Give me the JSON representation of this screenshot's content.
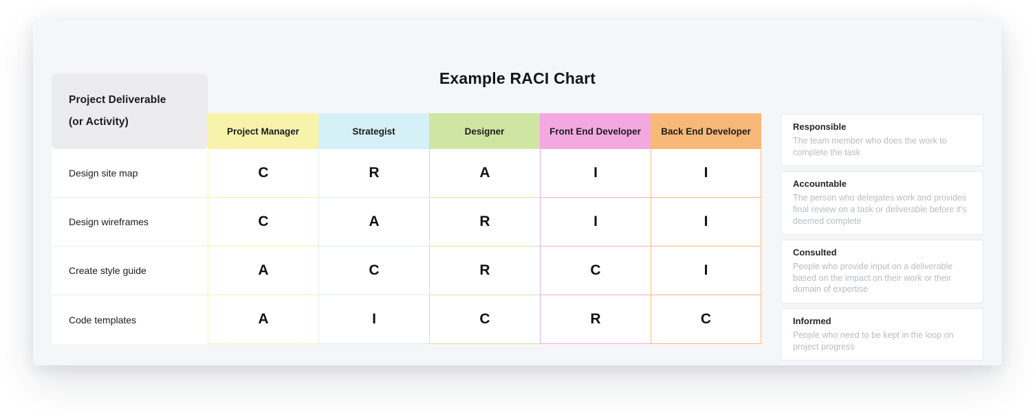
{
  "title": "Example RACI Chart",
  "table": {
    "corner_header": {
      "line1": "Project Deliverable",
      "line2": "(or Activity)"
    },
    "columns": [
      {
        "label": "Project Manager",
        "color": "#f8f3aa"
      },
      {
        "label": "Strategist",
        "color": "#d5f0f7"
      },
      {
        "label": "Designer",
        "color": "#cfe6a2"
      },
      {
        "label": "Front End Developer",
        "color": "#f3a8e0"
      },
      {
        "label": "Back End Developer",
        "color": "#f8b878"
      }
    ],
    "rows": [
      {
        "activity": "Design site map",
        "values": [
          "C",
          "R",
          "A",
          "I",
          "I"
        ]
      },
      {
        "activity": "Design wireframes",
        "values": [
          "C",
          "A",
          "R",
          "I",
          "I"
        ]
      },
      {
        "activity": "Create style guide",
        "values": [
          "A",
          "C",
          "R",
          "C",
          "I"
        ]
      },
      {
        "activity": "Code templates",
        "values": [
          "A",
          "I",
          "C",
          "R",
          "C"
        ]
      }
    ]
  },
  "legend": [
    {
      "term": "Responsible",
      "definition": "The team member who does the work to complete the task"
    },
    {
      "term": "Accountable",
      "definition": "The person who delegates work and provides final review on a task or deliverable before it's deemed complete"
    },
    {
      "term": "Consulted",
      "definition": "People who provide input on a deliverable based on the impact on their work or their domain of expertise"
    },
    {
      "term": "Informed",
      "definition": "People who need to be kept in the loop on project progress"
    }
  ]
}
